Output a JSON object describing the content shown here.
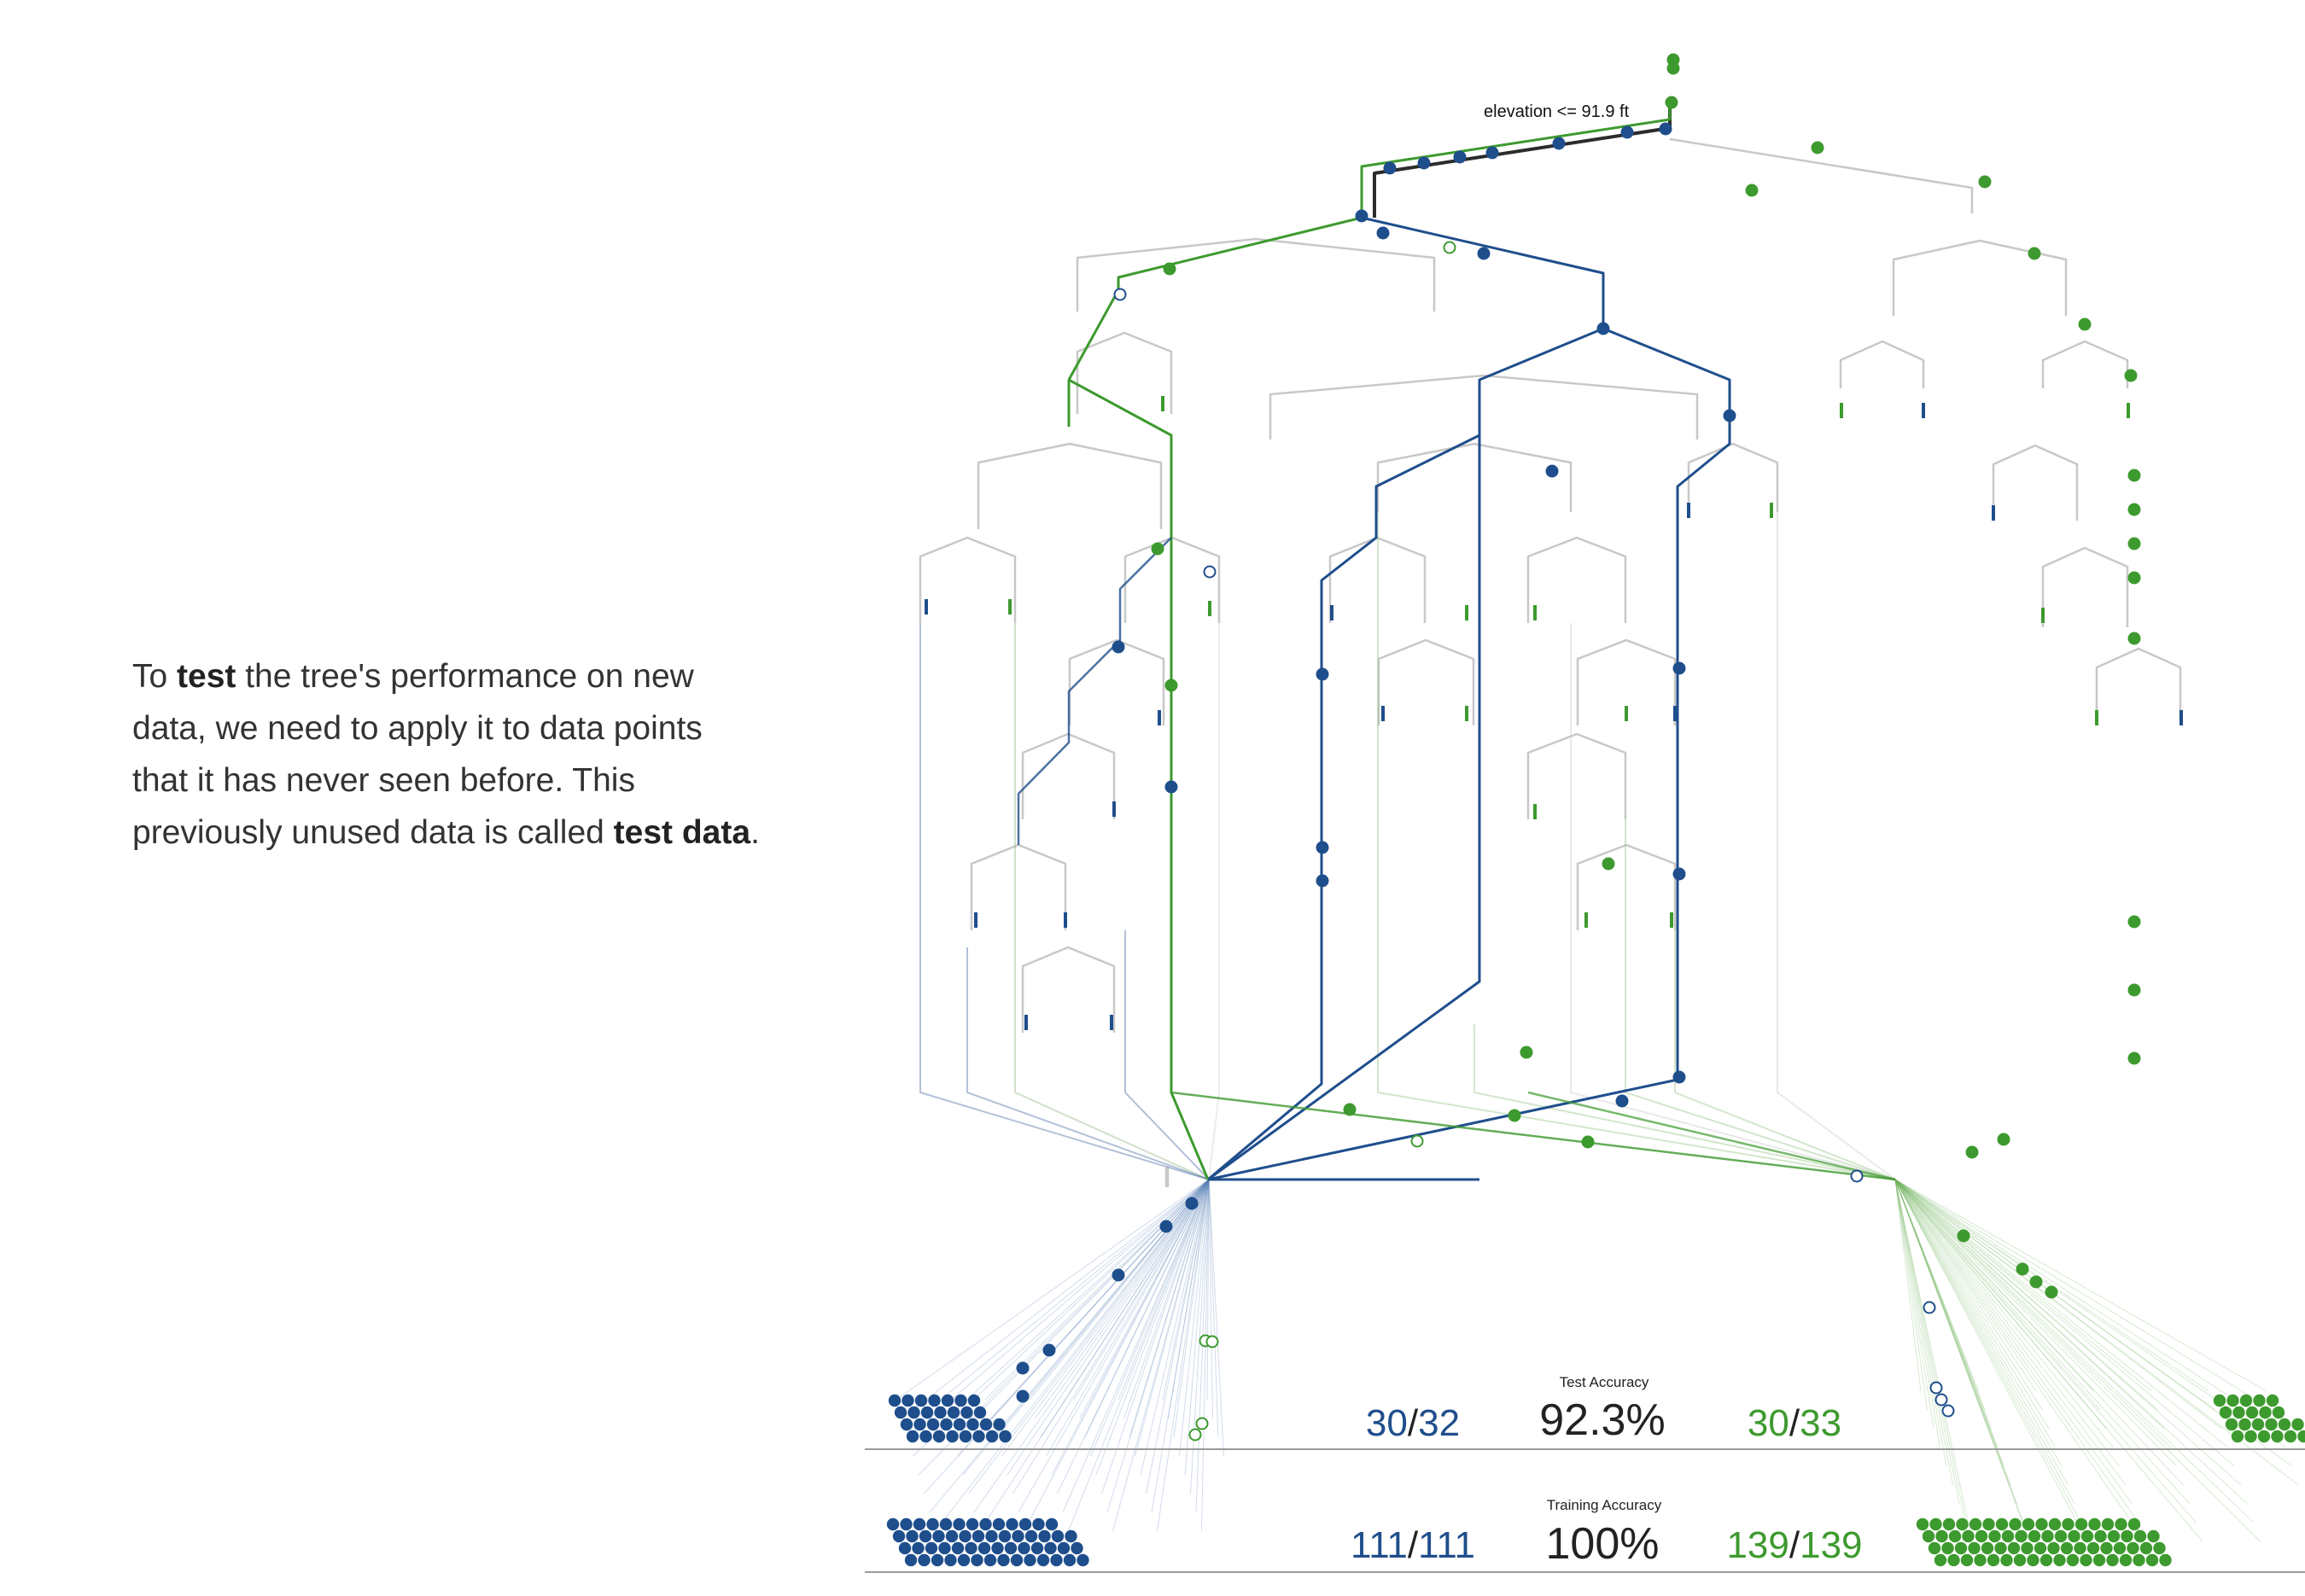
{
  "narrative": {
    "t1": "To ",
    "b1": "test",
    "t2": " the tree's performance on new data, we need to apply it to data points that it has never seen before. This previously unused data is called ",
    "b2": "test data",
    "t3": "."
  },
  "tree": {
    "root_split_label": "elevation <= 91.9 ft"
  },
  "test": {
    "label": "Test Accuracy",
    "accuracy": "92.3%",
    "left_correct": "30",
    "left_total": "32",
    "right_correct": "30",
    "right_total": "33",
    "slash": "/"
  },
  "training": {
    "label": "Training Accuracy",
    "accuracy": "100%",
    "left_correct": "111",
    "left_total": "111",
    "right_correct": "139",
    "right_total": "139",
    "slash": "/"
  },
  "colors": {
    "blue": "#1f4e8c",
    "green": "#3d9a2e",
    "gray": "#c8c8c8",
    "dark": "#2b2b2b"
  }
}
